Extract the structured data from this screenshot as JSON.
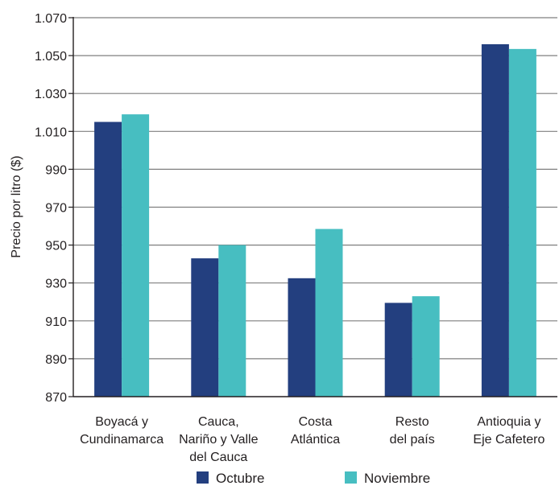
{
  "chart_data": {
    "type": "bar",
    "title": "",
    "xlabel": "",
    "ylabel": "Precio por litro ($)",
    "ylim": [
      870,
      1070
    ],
    "yticks": [
      {
        "value": 870,
        "label": "870"
      },
      {
        "value": 890,
        "label": "890"
      },
      {
        "value": 910,
        "label": "910"
      },
      {
        "value": 930,
        "label": "930"
      },
      {
        "value": 950,
        "label": "950"
      },
      {
        "value": 970,
        "label": "970"
      },
      {
        "value": 990,
        "label": "990"
      },
      {
        "value": 1010,
        "label": "1.010"
      },
      {
        "value": 1030,
        "label": "1.030"
      },
      {
        "value": 1050,
        "label": "1.050"
      },
      {
        "value": 1070,
        "label": "1.070"
      }
    ],
    "categories": [
      [
        "Boyacá y",
        "Cundinamarca"
      ],
      [
        "Cauca,",
        "Nariño y Valle",
        "del Cauca"
      ],
      [
        "Costa",
        "Atlántica"
      ],
      [
        "Resto",
        "del país"
      ],
      [
        "Antioquia y",
        "Eje Cafetero"
      ]
    ],
    "series": [
      {
        "name": "Octubre",
        "color": "#233f7f",
        "values": [
          1015,
          943,
          932.5,
          919.5,
          1056
        ]
      },
      {
        "name": "Noviembre",
        "color": "#47bec1",
        "values": [
          1019,
          950,
          958.5,
          923,
          1053.5
        ]
      }
    ],
    "grid": true,
    "legend_position": "bottom"
  }
}
